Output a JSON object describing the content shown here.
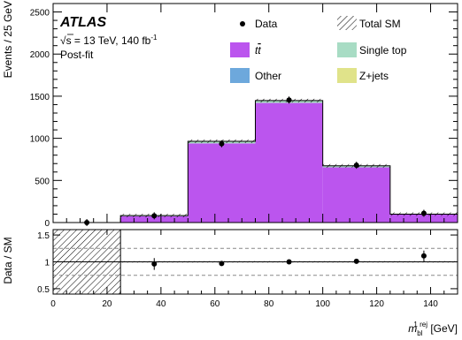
{
  "chart_data": [
    {
      "panel": "main",
      "type": "bar",
      "ylabel": "Events / 25 GeV",
      "ylim": [
        0,
        2600
      ],
      "y_ticks": [
        0,
        500,
        1000,
        1500,
        2000,
        2500
      ],
      "y_tick_labels": [
        "0",
        "500",
        "1000",
        "1500",
        "2000",
        "2500"
      ],
      "x_bins": [
        [
          0,
          25
        ],
        [
          25,
          50
        ],
        [
          50,
          75
        ],
        [
          75,
          100
        ],
        [
          100,
          125
        ],
        [
          125,
          150
        ]
      ],
      "series": [
        {
          "name": "t̅t",
          "color": "#bb55ee",
          "values": [
            0,
            75,
            940,
            1420,
            655,
            95
          ]
        },
        {
          "name": "Single top",
          "color": "#a8dcc4",
          "values": [
            0,
            8,
            25,
            28,
            18,
            5
          ]
        },
        {
          "name": "Other",
          "color": "#6da8dc",
          "values": [
            0,
            0,
            0,
            0,
            0,
            0
          ]
        },
        {
          "name": "Z+jets",
          "color": "#e0e38a",
          "values": [
            0,
            0,
            0,
            0,
            0,
            0
          ]
        }
      ],
      "total_sm": [
        0,
        83,
        965,
        1448,
        673,
        100
      ],
      "data": {
        "name": "Data",
        "x": [
          12.5,
          37.5,
          62.5,
          87.5,
          112.5,
          137.5
        ],
        "y": [
          0,
          80,
          935,
          1455,
          680,
          110
        ]
      },
      "legend_entries": [
        "Data",
        "Total SM",
        "t̅t",
        "Single top",
        "Other",
        "Z+jets"
      ],
      "annotations": {
        "experiment": "ATLAS",
        "energy_prefix": "s",
        "energy_text": " = 13 TeV, 140 fb",
        "energy_sup": "-1",
        "fit_state": "Post-fit"
      }
    },
    {
      "panel": "ratio",
      "type": "scatter",
      "ylabel": "Data / SM",
      "ylim": [
        0.4,
        1.6
      ],
      "y_ticks": [
        0.5,
        1,
        1.5
      ],
      "y_tick_labels": [
        "0.5",
        "1",
        "1.5"
      ],
      "reference_lines": [
        0.75,
        1.0,
        1.25
      ],
      "x": [
        37.5,
        62.5,
        87.5,
        112.5,
        137.5
      ],
      "y": [
        0.96,
        0.97,
        1.0,
        1.01,
        1.11
      ],
      "yerr": [
        0.11,
        0.03,
        0.03,
        0.04,
        0.1
      ],
      "unavailable_region": [
        0,
        25
      ],
      "xlim": [
        0,
        150
      ],
      "x_ticks": [
        0,
        20,
        40,
        60,
        80,
        100,
        120,
        140
      ],
      "x_tick_labels": [
        "0",
        "20",
        "40",
        "60",
        "80",
        "100",
        "120",
        "140"
      ],
      "xlabel_main": "m",
      "xlabel_sub": "bl",
      "xlabel_sup": "1 rej",
      "xlabel_unit": " [GeV]"
    }
  ]
}
